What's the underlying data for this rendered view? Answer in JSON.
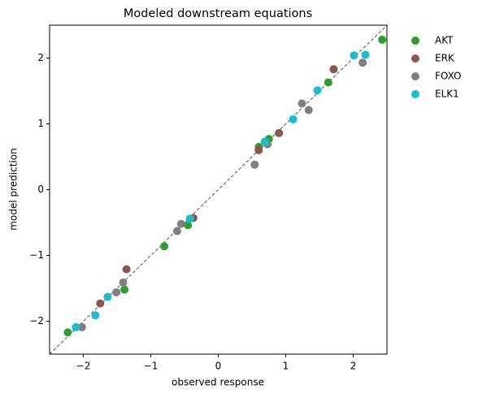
{
  "chart_data": {
    "type": "scatter",
    "title": "Modeled downstream equations",
    "x_label": "observed response",
    "y_label": "model prediction",
    "xlim": [
      -2.5,
      2.5
    ],
    "ylim": [
      -2.5,
      2.5
    ],
    "xticks": [
      {
        "value": -2,
        "label": "−2"
      },
      {
        "value": -1,
        "label": "−1"
      },
      0,
      1,
      2
    ],
    "yticks": [
      {
        "value": -2,
        "label": "−2"
      },
      {
        "value": -1,
        "label": "−1"
      },
      0,
      1,
      2
    ],
    "identity_line": true,
    "legend": "outside upper right",
    "series": [
      {
        "name": "AKT",
        "color": "#2ca02c",
        "x": [
          2.43,
          1.63,
          0.75,
          0.6,
          -0.8,
          -0.45,
          -1.39,
          -2.23
        ],
        "y": [
          2.28,
          1.63,
          0.77,
          0.65,
          -0.86,
          -0.54,
          -1.52,
          -2.17
        ]
      },
      {
        "name": "ERK",
        "color": "#8c564b",
        "x": [
          1.71,
          0.9,
          0.6,
          -0.37,
          -1.36,
          -1.75
        ],
        "y": [
          1.83,
          0.86,
          0.6,
          -0.43,
          -1.21,
          -1.73
        ]
      },
      {
        "name": "FOXO",
        "color": "#7f7f7f",
        "x": [
          2.14,
          1.24,
          1.34,
          0.73,
          0.54,
          -0.55,
          -0.61,
          -1.41,
          -1.51,
          -2.02
        ],
        "y": [
          1.93,
          1.31,
          1.21,
          0.69,
          0.38,
          -0.52,
          -0.63,
          -1.41,
          -1.56,
          -2.09
        ]
      },
      {
        "name": "ELK1",
        "color": "#17becf",
        "x": [
          2.18,
          2.01,
          1.47,
          1.11,
          0.69,
          -0.42,
          -1.64,
          -1.82,
          -2.11
        ],
        "y": [
          2.05,
          2.04,
          1.51,
          1.07,
          0.73,
          -0.44,
          -1.63,
          -1.91,
          -2.09
        ]
      }
    ]
  }
}
